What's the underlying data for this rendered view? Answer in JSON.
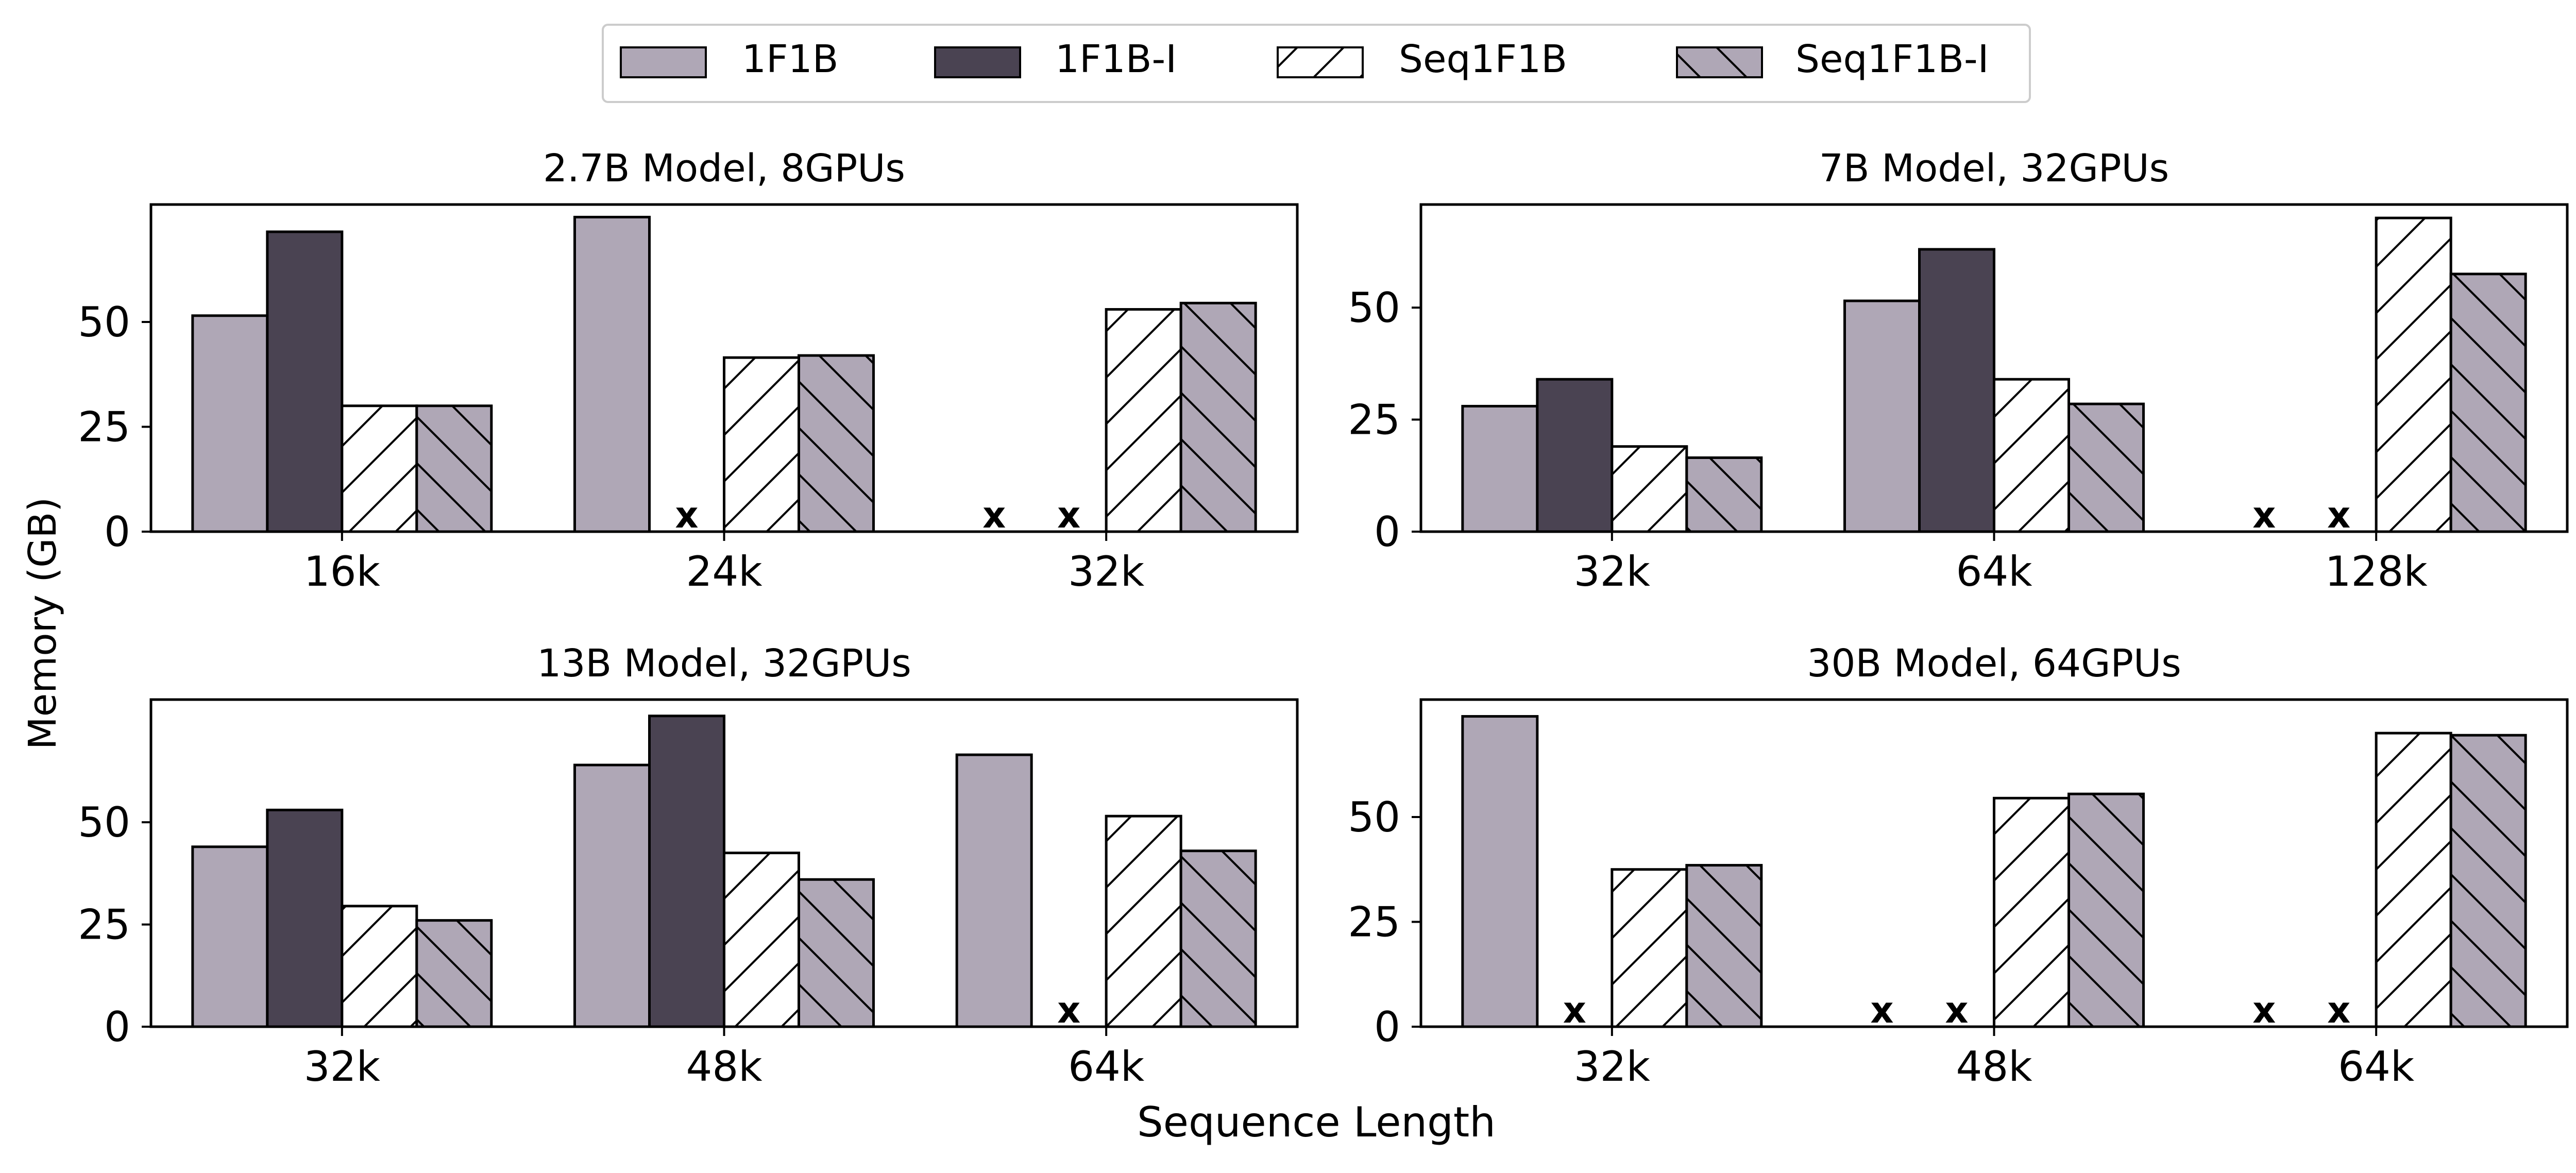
{
  "figure": {
    "ylabel": "Memory (GB)",
    "xlabel": "Sequence Length",
    "legend": {
      "placement": "top-center",
      "entries": [
        {
          "label": "1F1B",
          "fill": "#afa7b6",
          "hatch": "none"
        },
        {
          "label": "1F1B-I",
          "fill": "#4a4352",
          "hatch": "none"
        },
        {
          "label": "Seq1F1B",
          "fill": "#ffffff",
          "hatch": "forward-diagonal"
        },
        {
          "label": "Seq1F1B-I",
          "fill": "#afa7b6",
          "hatch": "back-diagonal"
        }
      ]
    },
    "missing_marker": "x"
  },
  "chart_data": [
    {
      "type": "bar",
      "title": "2.7B Model, 8GPUs",
      "categories": [
        "16k",
        "24k",
        "32k"
      ],
      "ylim": [
        0,
        78
      ],
      "yticks": [
        0,
        25,
        50
      ],
      "series": [
        {
          "name": "1F1B",
          "values": [
            51.5,
            75.0,
            null
          ]
        },
        {
          "name": "1F1B-I",
          "values": [
            71.5,
            null,
            null
          ]
        },
        {
          "name": "Seq1F1B",
          "values": [
            30.0,
            41.5,
            53.0
          ]
        },
        {
          "name": "Seq1F1B-I",
          "values": [
            30.0,
            42.0,
            54.5
          ]
        }
      ]
    },
    {
      "type": "bar",
      "title": "7B Model, 32GPUs",
      "categories": [
        "32k",
        "64k",
        "128k"
      ],
      "ylim": [
        0,
        73
      ],
      "yticks": [
        0,
        25,
        50
      ],
      "series": [
        {
          "name": "1F1B",
          "values": [
            28.0,
            51.5,
            null
          ]
        },
        {
          "name": "1F1B-I",
          "values": [
            34.0,
            63.0,
            null
          ]
        },
        {
          "name": "Seq1F1B",
          "values": [
            19.0,
            34.0,
            70.0
          ]
        },
        {
          "name": "Seq1F1B-I",
          "values": [
            16.5,
            28.5,
            57.5
          ]
        }
      ]
    },
    {
      "type": "bar",
      "title": "13B Model, 32GPUs",
      "categories": [
        "32k",
        "48k",
        "64k"
      ],
      "ylim": [
        0,
        80
      ],
      "yticks": [
        0,
        25,
        50
      ],
      "series": [
        {
          "name": "1F1B",
          "values": [
            44.0,
            64.0,
            66.5
          ]
        },
        {
          "name": "1F1B-I",
          "values": [
            53.0,
            76.0,
            null
          ]
        },
        {
          "name": "Seq1F1B",
          "values": [
            29.5,
            42.5,
            51.5
          ]
        },
        {
          "name": "Seq1F1B-I",
          "values": [
            26.0,
            36.0,
            43.0
          ]
        }
      ]
    },
    {
      "type": "bar",
      "title": "30B Model, 64GPUs",
      "categories": [
        "32k",
        "48k",
        "64k"
      ],
      "ylim": [
        0,
        78
      ],
      "yticks": [
        0,
        25,
        50
      ],
      "series": [
        {
          "name": "1F1B",
          "values": [
            74.0,
            null,
            null
          ]
        },
        {
          "name": "1F1B-I",
          "values": [
            null,
            null,
            null
          ]
        },
        {
          "name": "Seq1F1B",
          "values": [
            37.5,
            54.5,
            70.0
          ]
        },
        {
          "name": "Seq1F1B-I",
          "values": [
            38.5,
            55.5,
            69.5
          ]
        }
      ]
    }
  ]
}
